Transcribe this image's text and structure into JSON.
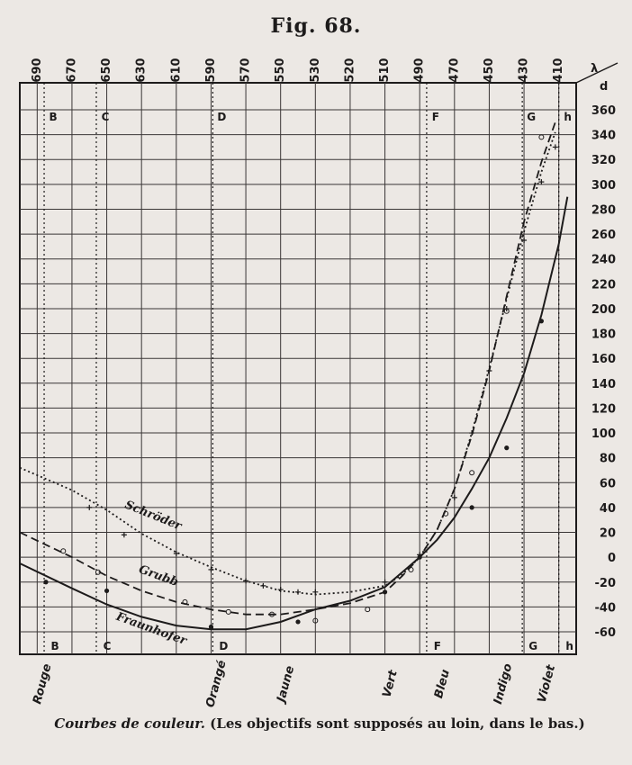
{
  "figure_title": "Fig. 68.",
  "caption": {
    "italic": "Courbes de couleur.",
    "rest": " (Les objectifs sont supposés au loin, dans le bas.)"
  },
  "chart_data": {
    "type": "line",
    "lambda_label": "λ",
    "d_label": "d",
    "x_ticks": [
      690,
      670,
      650,
      630,
      610,
      590,
      570,
      550,
      530,
      520,
      510,
      490,
      470,
      450,
      430,
      410
    ],
    "y_ticks": [
      360,
      340,
      320,
      300,
      280,
      260,
      240,
      220,
      200,
      180,
      160,
      140,
      120,
      100,
      80,
      60,
      40,
      20,
      0,
      -20,
      -40,
      -60
    ],
    "ylim": [
      -80,
      370
    ],
    "fraunhofer_lines": [
      {
        "letter": "B",
        "x": 686,
        "bottom_letter": "B"
      },
      {
        "letter": "C",
        "x": 656,
        "bottom_letter": "C"
      },
      {
        "letter": "D",
        "x": 589,
        "bottom_letter": "D"
      },
      {
        "letter": "F",
        "x": 486,
        "bottom_letter": "F"
      },
      {
        "letter": "G",
        "x": 431,
        "bottom_letter": "G"
      },
      {
        "letter": "h",
        "x": 410,
        "bottom_letter": "h"
      }
    ],
    "color_names": [
      {
        "name": "Rouge",
        "x": 690
      },
      {
        "name": "Orangé",
        "x": 590
      },
      {
        "name": "Jaune",
        "x": 550
      },
      {
        "name": "Vert",
        "x": 510
      },
      {
        "name": "Bleu",
        "x": 480
      },
      {
        "name": "Indigo",
        "x": 445
      },
      {
        "name": "Violet",
        "x": 420
      }
    ],
    "series": [
      {
        "name": "Schröder",
        "style": "dotted",
        "x": [
          700,
          670,
          650,
          630,
          610,
          590,
          570,
          550,
          530,
          520,
          510,
          500,
          490,
          480,
          470,
          460,
          450,
          440,
          430,
          420,
          412
        ],
        "values": [
          72,
          54,
          38,
          19,
          4,
          -8,
          -19,
          -27,
          -30,
          -28,
          -23,
          -14,
          0,
          22,
          55,
          100,
          152,
          208,
          262,
          310,
          342
        ],
        "point_marker": "+",
        "points_x": [
          660,
          640,
          610,
          590,
          570,
          560,
          550,
          540,
          530,
          510,
          490,
          470,
          460,
          450,
          440,
          430,
          420,
          412
        ],
        "points_y": [
          40,
          18,
          3,
          -10,
          -19,
          -23,
          -26,
          -28,
          -28,
          -20,
          2,
          48,
          100,
          150,
          200,
          255,
          302,
          330
        ]
      },
      {
        "name": "Grubb",
        "style": "dashed",
        "x": [
          700,
          670,
          650,
          630,
          610,
          590,
          570,
          550,
          530,
          520,
          510,
          500,
          490,
          480,
          470,
          460,
          450,
          440,
          430,
          420,
          412
        ],
        "values": [
          20,
          0,
          -15,
          -27,
          -36,
          -42,
          -46,
          -46,
          -42,
          -37,
          -28,
          -15,
          0,
          22,
          55,
          98,
          150,
          210,
          270,
          318,
          350
        ],
        "point_marker": "o",
        "points_x": [
          675,
          655,
          605,
          580,
          555,
          530,
          515,
          495,
          475,
          460,
          440,
          420
        ],
        "points_y": [
          5,
          -12,
          -36,
          -44,
          -46,
          -51,
          -42,
          -10,
          35,
          68,
          198,
          338
        ]
      },
      {
        "name": "Fraunhofer",
        "style": "solid",
        "x": [
          700,
          670,
          650,
          630,
          610,
          590,
          570,
          550,
          530,
          520,
          510,
          500,
          490,
          480,
          470,
          460,
          450,
          440,
          430,
          420,
          410,
          405
        ],
        "values": [
          -5,
          -25,
          -38,
          -48,
          -55,
          -58,
          -58,
          -52,
          -42,
          -35,
          -24,
          -12,
          0,
          14,
          32,
          55,
          80,
          112,
          148,
          195,
          252,
          290
        ],
        "point_marker": "•",
        "points_x": [
          685,
          650,
          590,
          540,
          510,
          490,
          460,
          440,
          420
        ],
        "points_y": [
          -20,
          -27,
          -56,
          -52,
          -28,
          0,
          40,
          88,
          190
        ]
      }
    ]
  }
}
